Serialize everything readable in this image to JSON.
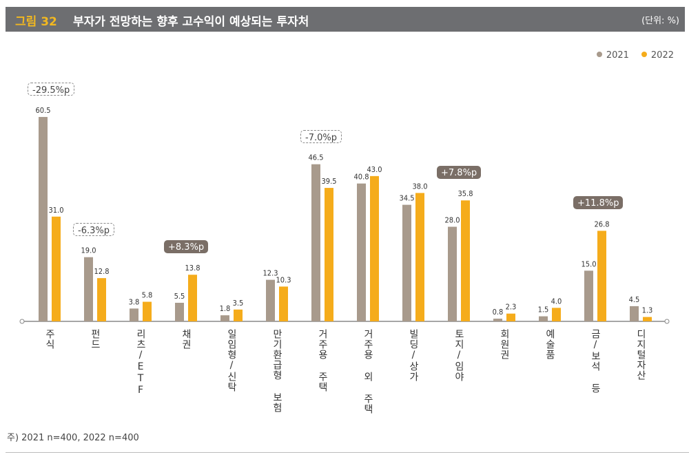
{
  "header": {
    "figure_num": "그림 32",
    "title": "부자가 전망하는 향후 고수익이 예상되는 투자처",
    "unit": "(단위: %)"
  },
  "chart_data": {
    "type": "bar",
    "title": "부자가 전망하는 향후 고수익이 예상되는 투자처",
    "unit": "(단위: %)",
    "legend_position": "top-right",
    "grid": false,
    "ylim": [
      0,
      65
    ],
    "categories": [
      "주식",
      "펀드",
      "리츠/ETF",
      "채권",
      "일임형/신탁",
      "만기환급형 보험",
      "거주용 주택",
      "거주용 외 주택",
      "빌딩/상가",
      "토지/임야",
      "회원권",
      "예술품",
      "금/보석 등",
      "디지털자산"
    ],
    "series": [
      {
        "name": "2021",
        "color": "#a89a8c",
        "values": [
          60.5,
          19.0,
          3.8,
          5.5,
          1.8,
          12.3,
          46.5,
          40.8,
          34.5,
          28.0,
          0.8,
          1.5,
          15.0,
          4.5
        ]
      },
      {
        "name": "2022",
        "color": "#f5ac1b",
        "values": [
          31.0,
          12.8,
          5.8,
          13.8,
          3.5,
          10.3,
          39.5,
          43.0,
          38.0,
          35.8,
          2.3,
          4.0,
          26.8,
          1.3
        ]
      }
    ],
    "annotations": [
      {
        "category": "주식",
        "text": "-29.5%p",
        "style": "dashed"
      },
      {
        "category": "펀드",
        "text": "-6.3%p",
        "style": "dashed"
      },
      {
        "category": "채권",
        "text": "+8.3%p",
        "style": "filled"
      },
      {
        "category": "거주용 주택",
        "text": "-7.0%p",
        "style": "dashed"
      },
      {
        "category": "토지/임야",
        "text": "+7.8%p",
        "style": "filled"
      },
      {
        "category": "금/보석 등",
        "text": "+11.8%p",
        "style": "filled"
      }
    ]
  },
  "note": "주) 2021 n=400, 2022 n=400"
}
